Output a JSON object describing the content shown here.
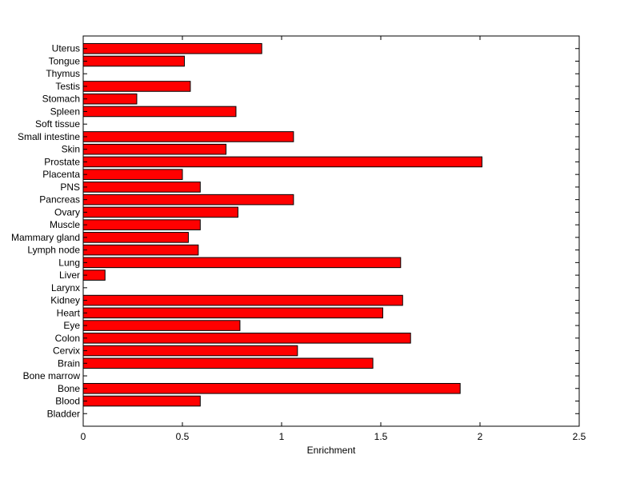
{
  "chart_data": {
    "type": "bar",
    "orientation": "horizontal",
    "title": "",
    "xlabel": "Enrichment",
    "ylabel": "",
    "xlim": [
      0,
      2.5
    ],
    "xticks": [
      0,
      0.5,
      1,
      1.5,
      2,
      2.5
    ],
    "xtick_labels": [
      "0",
      "0.5",
      "1",
      "1.5",
      "2",
      "2.5"
    ],
    "grid": false,
    "legend": "none",
    "bar_color": "#ff0000",
    "bar_edge_color": "#000000",
    "categories": [
      "Bladder",
      "Blood",
      "Bone",
      "Bone marrow",
      "Brain",
      "Cervix",
      "Colon",
      "Eye",
      "Heart",
      "Kidney",
      "Larynx",
      "Liver",
      "Lung",
      "Lymph node",
      "Mammary gland",
      "Muscle",
      "Ovary",
      "Pancreas",
      "PNS",
      "Placenta",
      "Prostate",
      "Skin",
      "Small intestine",
      "Soft tissue",
      "Spleen",
      "Stomach",
      "Testis",
      "Thymus",
      "Tongue",
      "Uterus"
    ],
    "values": [
      0,
      0.59,
      1.9,
      0,
      1.46,
      1.08,
      1.65,
      0.79,
      1.51,
      1.61,
      0,
      0.11,
      1.6,
      0.58,
      0.53,
      0.59,
      0.78,
      1.06,
      0.59,
      0.5,
      2.01,
      0.72,
      1.06,
      0,
      0.77,
      0.27,
      0.54,
      0,
      0.51,
      0.9
    ]
  }
}
